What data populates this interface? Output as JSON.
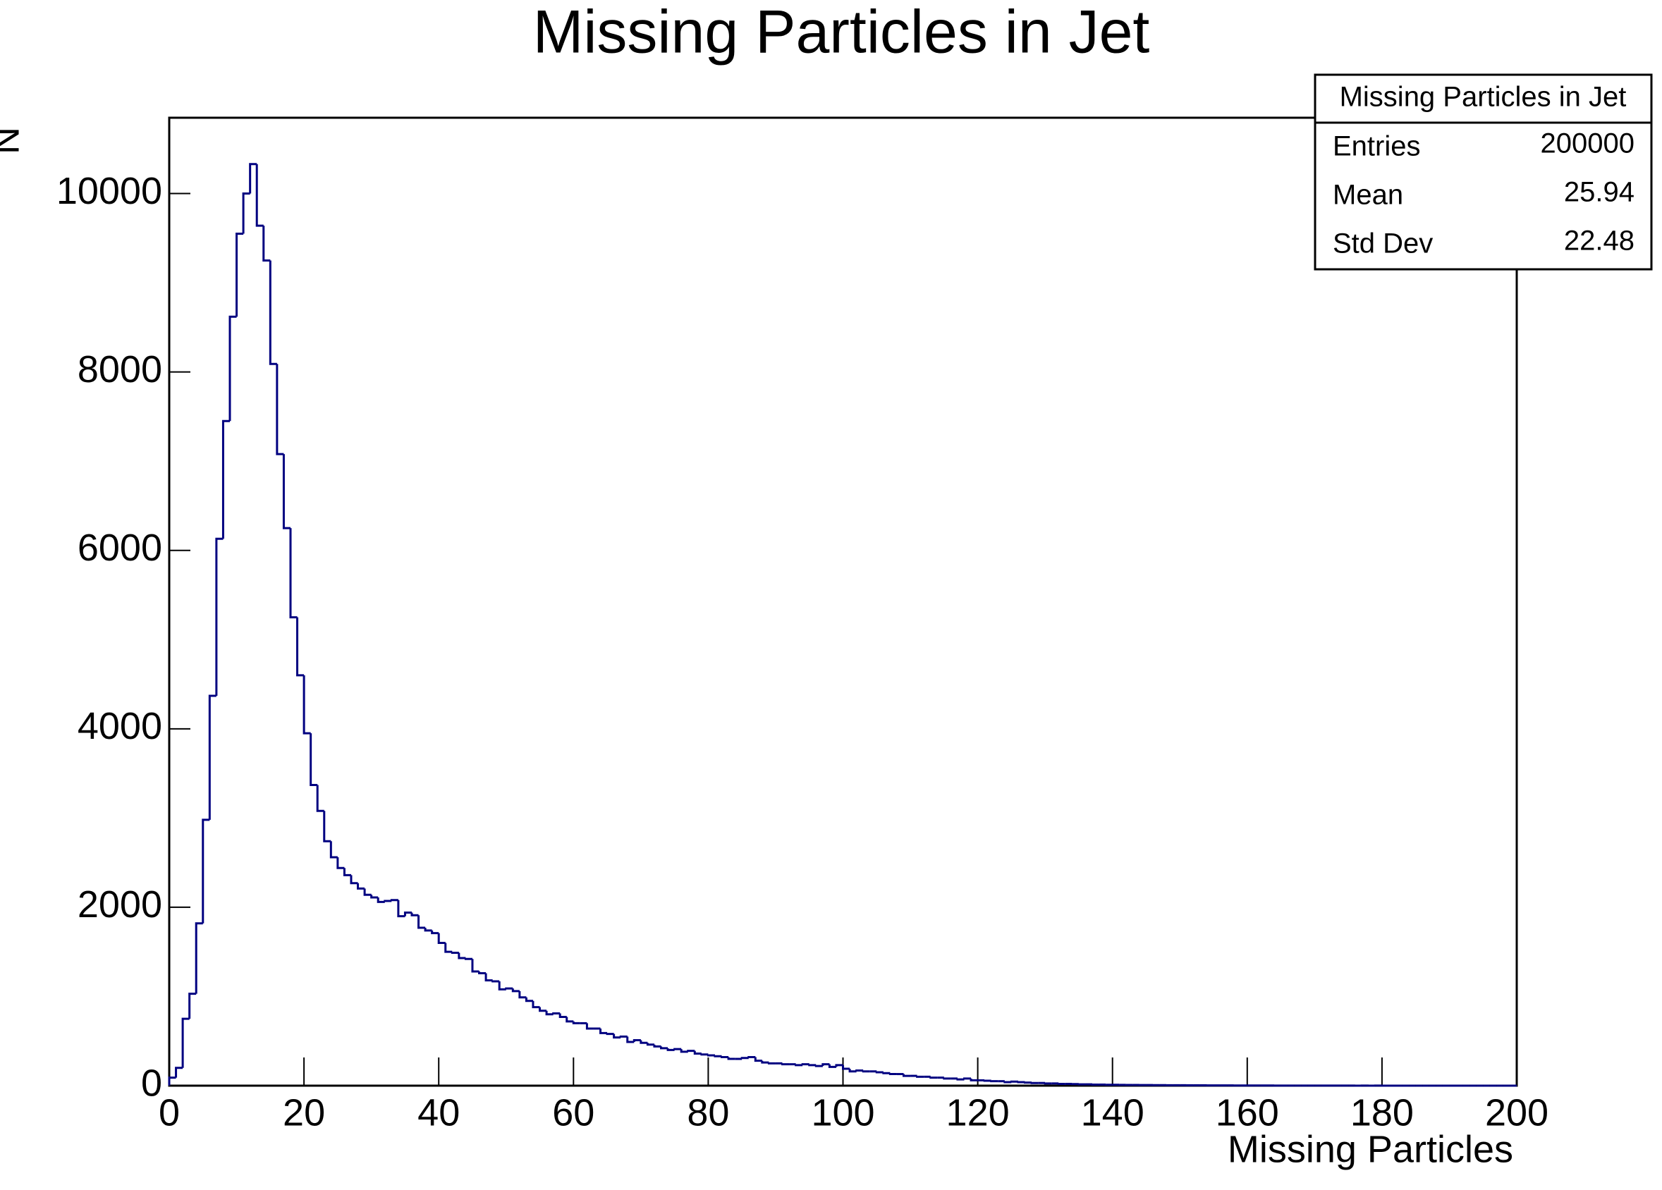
{
  "chart_data": {
    "type": "histogram",
    "title": "Missing Particles in Jet",
    "x_label": "Missing Particles",
    "y_label": "N",
    "color": "#000080",
    "bins": [
      0,
      1,
      2,
      3,
      4,
      5,
      6,
      7,
      8,
      9,
      10,
      11,
      12,
      13,
      14,
      15,
      16,
      17,
      18,
      19,
      20,
      21,
      22,
      23,
      24,
      25,
      26,
      27,
      28,
      29,
      30,
      31,
      32,
      33,
      34,
      35,
      36,
      37,
      38,
      39,
      40,
      41,
      42,
      43,
      44,
      45,
      46,
      47,
      48,
      49,
      50,
      51,
      52,
      53,
      54,
      55,
      56,
      57,
      58,
      59,
      60,
      61,
      62,
      63,
      64,
      65,
      66,
      67,
      68,
      69,
      70,
      71,
      72,
      73,
      74,
      75,
      76,
      77,
      78,
      79,
      80,
      81,
      82,
      83,
      84,
      85,
      86,
      87,
      88,
      89,
      90,
      91,
      92,
      93,
      94,
      95,
      96,
      97,
      98,
      99,
      100,
      101,
      102,
      103,
      104,
      105,
      106,
      107,
      108,
      109,
      110,
      111,
      112,
      113,
      114,
      115,
      116,
      117,
      118,
      119,
      120,
      121,
      122,
      123,
      124,
      125,
      126,
      127,
      128,
      129,
      130,
      131,
      132,
      133,
      134,
      135,
      136,
      137,
      138,
      139,
      140,
      141,
      142,
      143,
      144,
      145,
      146,
      147,
      148,
      149,
      150,
      151,
      152,
      153,
      154,
      155,
      156,
      157,
      158,
      159,
      160,
      161,
      162,
      163,
      164,
      165,
      166,
      167,
      168,
      169,
      170,
      171,
      172,
      173,
      174,
      175,
      176,
      177,
      178,
      179,
      180,
      181,
      182,
      183,
      184,
      185,
      186,
      187,
      188,
      189,
      190,
      191,
      192,
      193,
      194,
      195,
      196,
      197,
      198,
      199,
      200
    ],
    "values": [
      90,
      200,
      750,
      1030,
      1820,
      2980,
      4370,
      6130,
      7450,
      8620,
      9550,
      10000,
      10330,
      9640,
      9250,
      8090,
      7080,
      6250,
      5250,
      4600,
      3950,
      3370,
      3080,
      2740,
      2560,
      2440,
      2360,
      2270,
      2210,
      2140,
      2110,
      2060,
      2070,
      2080,
      1900,
      1940,
      1910,
      1770,
      1740,
      1710,
      1600,
      1500,
      1490,
      1430,
      1420,
      1280,
      1260,
      1180,
      1170,
      1080,
      1090,
      1060,
      990,
      950,
      880,
      840,
      800,
      810,
      770,
      720,
      700,
      700,
      640,
      640,
      590,
      580,
      540,
      550,
      490,
      510,
      480,
      460,
      440,
      420,
      400,
      410,
      380,
      390,
      360,
      350,
      340,
      330,
      320,
      300,
      300,
      310,
      320,
      280,
      260,
      250,
      250,
      240,
      240,
      230,
      240,
      230,
      220,
      240,
      210,
      230,
      190,
      160,
      170,
      160,
      160,
      150,
      140,
      130,
      130,
      110,
      110,
      100,
      100,
      90,
      90,
      80,
      80,
      70,
      80,
      60,
      60,
      55,
      50,
      50,
      40,
      45,
      40,
      35,
      30,
      30,
      25,
      25,
      20,
      20,
      18,
      15,
      15,
      12,
      12,
      10,
      10,
      9,
      8,
      8,
      7,
      7,
      6,
      6,
      5,
      5,
      5,
      4,
      4,
      4,
      3,
      3,
      3,
      3,
      2,
      2,
      2,
      2,
      2,
      2,
      1,
      1,
      1,
      1,
      1,
      1,
      1,
      1,
      1,
      1,
      1,
      1,
      0,
      1,
      0,
      1,
      0,
      0,
      0,
      0,
      0,
      0,
      0,
      0,
      0,
      0,
      0,
      0,
      0,
      0,
      0,
      0,
      0,
      0,
      0,
      0
    ],
    "xlim": [
      0,
      200
    ],
    "xticks": [
      0,
      20,
      40,
      60,
      80,
      100,
      120,
      140,
      160,
      180,
      200
    ],
    "ylim": [
      0,
      10850
    ],
    "yticks": [
      0,
      2000,
      4000,
      6000,
      8000,
      10000
    ],
    "stats": {
      "title": "Missing Particles in Jet",
      "rows": [
        [
          "Entries",
          200000
        ],
        [
          "Mean",
          25.94
        ],
        [
          "Std Dev",
          22.48
        ]
      ]
    }
  }
}
